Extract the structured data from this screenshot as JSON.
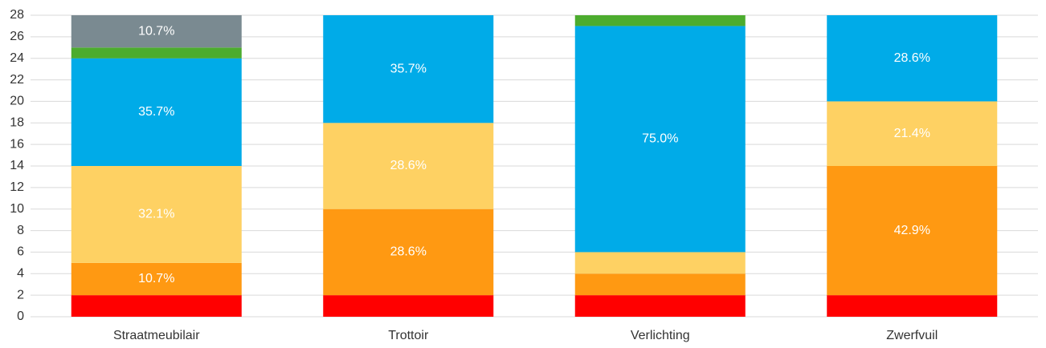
{
  "chart_data": {
    "type": "stacked_bar",
    "categories": [
      "Straatmeubilair",
      "Trottoir",
      "Verlichting",
      "Zwerfvuil"
    ],
    "series": [
      {
        "color": "#ff0000",
        "values": [
          2,
          2,
          2,
          2
        ],
        "value_labels": [
          null,
          null,
          null,
          null
        ]
      },
      {
        "color": "#ff9912",
        "values": [
          3,
          8,
          2,
          12
        ],
        "value_labels": [
          "10.7%",
          "28.6%",
          null,
          "42.9%"
        ]
      },
      {
        "color": "#fed163",
        "values": [
          9,
          8,
          2,
          6
        ],
        "value_labels": [
          "32.1%",
          "28.6%",
          null,
          "21.4%"
        ]
      },
      {
        "color": "#00abe8",
        "values": [
          10,
          10,
          21,
          8
        ],
        "value_labels": [
          "35.7%",
          "35.7%",
          "75.0%",
          "28.6%"
        ]
      },
      {
        "color": "#4cac2e",
        "values": [
          1,
          0,
          1,
          0
        ],
        "value_labels": [
          null,
          null,
          null,
          null
        ]
      },
      {
        "color": "#7a8a91",
        "values": [
          3,
          0,
          0,
          0
        ],
        "value_labels": [
          "10.7%",
          null,
          null,
          null
        ]
      }
    ],
    "ylim": [
      0,
      28
    ],
    "yticks": [
      0,
      2,
      4,
      6,
      8,
      10,
      12,
      14,
      16,
      18,
      20,
      22,
      24,
      26,
      28
    ],
    "grid": true
  }
}
